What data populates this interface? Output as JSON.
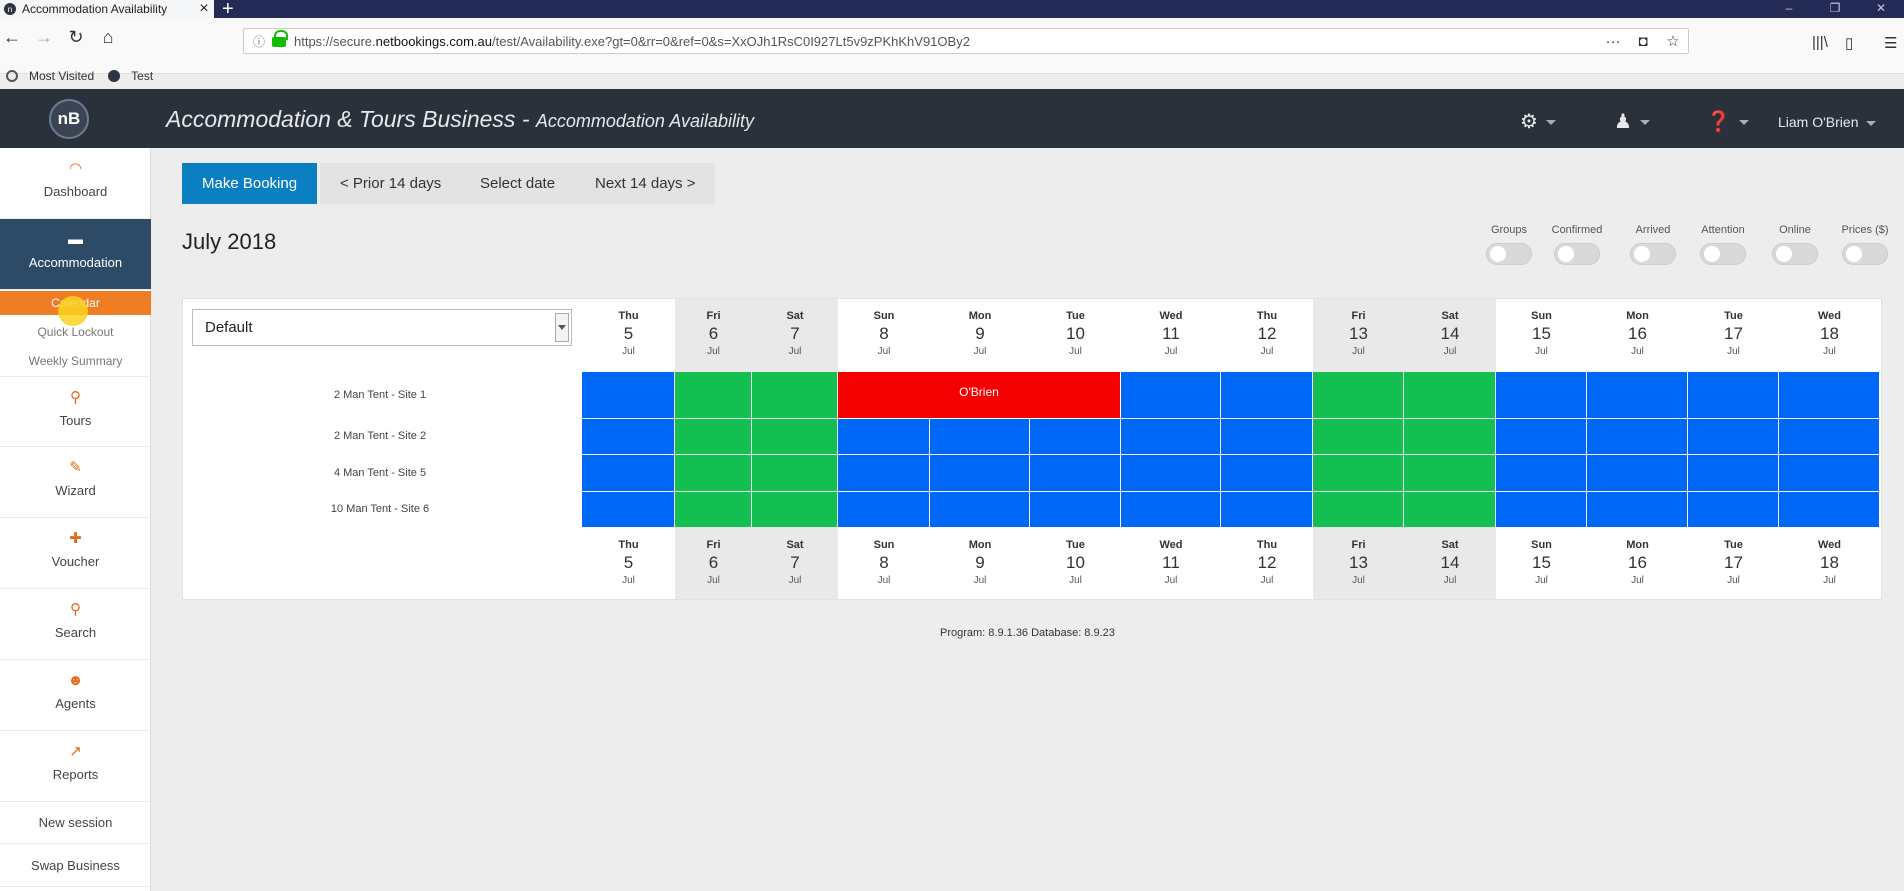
{
  "browser": {
    "tab_title": "Accommodation Availability",
    "url_prefix": "https://secure.",
    "url_domain": "netbookings.com.au",
    "url_rest": "/test/Availability.exe?gt=0&rr=0&ref=0&s=XxOJh1RsC0I927Lt5v9zPKhKhV91OBy2",
    "bookmarks": [
      "Most Visited",
      "Test"
    ]
  },
  "header": {
    "logo": "nB",
    "title": "Accommodation & Tours Business - ",
    "subtitle": "Accommodation Availability",
    "user": "Liam O'Brien"
  },
  "sidebar": {
    "items": [
      {
        "label": "Dashboard",
        "icon": "gauge-icon"
      },
      {
        "label": "Accommodation",
        "icon": "bed-icon"
      },
      {
        "label": "Tours",
        "icon": "route-icon"
      },
      {
        "label": "Wizard",
        "icon": "wand-icon"
      },
      {
        "label": "Voucher",
        "icon": "gift-icon"
      },
      {
        "label": "Search",
        "icon": "search-icon"
      },
      {
        "label": "Agents",
        "icon": "agent-icon"
      },
      {
        "label": "Reports",
        "icon": "chart-icon"
      }
    ],
    "sub_items": [
      "Calendar",
      "Quick Lockout",
      "Weekly Summary"
    ],
    "plain_items": [
      "New session",
      "Swap Business"
    ]
  },
  "toolbar": {
    "make_booking": "Make Booking",
    "prior": "< Prior 14 days",
    "select_date": "Select date",
    "next": "Next 14 days >"
  },
  "month_title": "July 2018",
  "toggles": [
    "Groups",
    "Confirmed",
    "Arrived",
    "Attention",
    "Online",
    "Prices ($)"
  ],
  "view_select": "Default",
  "days": [
    {
      "dow": "Thu",
      "num": "5",
      "mon": "Jul",
      "weekend": false
    },
    {
      "dow": "Fri",
      "num": "6",
      "mon": "Jul",
      "weekend": true
    },
    {
      "dow": "Sat",
      "num": "7",
      "mon": "Jul",
      "weekend": true
    },
    {
      "dow": "Sun",
      "num": "8",
      "mon": "Jul",
      "weekend": false
    },
    {
      "dow": "Mon",
      "num": "9",
      "mon": "Jul",
      "weekend": false
    },
    {
      "dow": "Tue",
      "num": "10",
      "mon": "Jul",
      "weekend": false
    },
    {
      "dow": "Wed",
      "num": "11",
      "mon": "Jul",
      "weekend": false
    },
    {
      "dow": "Thu",
      "num": "12",
      "mon": "Jul",
      "weekend": false
    },
    {
      "dow": "Fri",
      "num": "13",
      "mon": "Jul",
      "weekend": true
    },
    {
      "dow": "Sat",
      "num": "14",
      "mon": "Jul",
      "weekend": true
    },
    {
      "dow": "Sun",
      "num": "15",
      "mon": "Jul",
      "weekend": false
    },
    {
      "dow": "Mon",
      "num": "16",
      "mon": "Jul",
      "weekend": false
    },
    {
      "dow": "Tue",
      "num": "17",
      "mon": "Jul",
      "weekend": false
    },
    {
      "dow": "Wed",
      "num": "18",
      "mon": "Jul",
      "weekend": false
    }
  ],
  "rooms": [
    "2 Man Tent - Site 1",
    "2 Man Tent - Site 2",
    "4 Man Tent - Site 5",
    "10 Man Tent - Site 6"
  ],
  "booking": {
    "guest": "O'Brien",
    "room": 0,
    "start_day": 3,
    "end_day": 5
  },
  "colors": {
    "available": "#0068f7",
    "weekend": "#14bf51",
    "booked": "#f40000"
  },
  "footer": "Program: 8.9.1.36 Database: 8.9.23"
}
